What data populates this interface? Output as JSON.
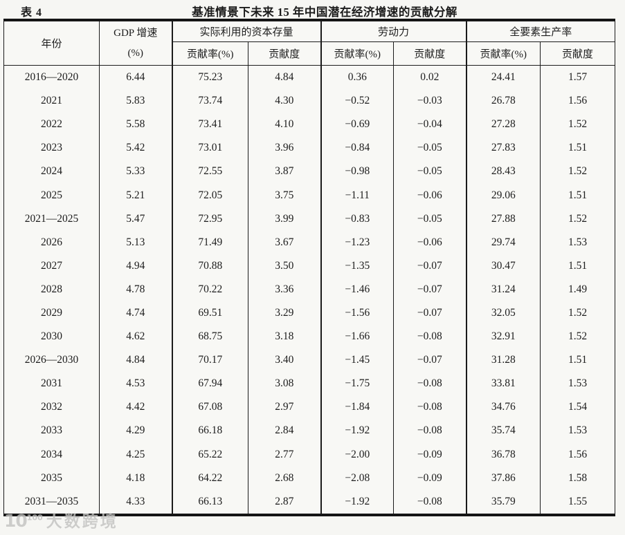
{
  "table": {
    "tag": "表 4",
    "title": "基准情景下未来 15 年中国潜在经济增速的贡献分解",
    "header": {
      "year": "年份",
      "gdp_line1": "GDP 增速",
      "gdp_line2": "(%)",
      "groups": [
        {
          "label": "实际利用的资本存量",
          "sub_rate": "贡献率(%)",
          "sub_degree": "贡献度"
        },
        {
          "label": "劳动力",
          "sub_rate": "贡献率(%)",
          "sub_degree": "贡献度"
        },
        {
          "label": "全要素生产率",
          "sub_rate": "贡献率(%)",
          "sub_degree": "贡献度"
        }
      ]
    },
    "rows": [
      [
        "2016—2020",
        "6.44",
        "75.23",
        "4.84",
        "0.36",
        "0.02",
        "24.41",
        "1.57"
      ],
      [
        "2021",
        "5.83",
        "73.74",
        "4.30",
        "−0.52",
        "−0.03",
        "26.78",
        "1.56"
      ],
      [
        "2022",
        "5.58",
        "73.41",
        "4.10",
        "−0.69",
        "−0.04",
        "27.28",
        "1.52"
      ],
      [
        "2023",
        "5.42",
        "73.01",
        "3.96",
        "−0.84",
        "−0.05",
        "27.83",
        "1.51"
      ],
      [
        "2024",
        "5.33",
        "72.55",
        "3.87",
        "−0.98",
        "−0.05",
        "28.43",
        "1.52"
      ],
      [
        "2025",
        "5.21",
        "72.05",
        "3.75",
        "−1.11",
        "−0.06",
        "29.06",
        "1.51"
      ],
      [
        "2021—2025",
        "5.47",
        "72.95",
        "3.99",
        "−0.83",
        "−0.05",
        "27.88",
        "1.52"
      ],
      [
        "2026",
        "5.13",
        "71.49",
        "3.67",
        "−1.23",
        "−0.06",
        "29.74",
        "1.53"
      ],
      [
        "2027",
        "4.94",
        "70.88",
        "3.50",
        "−1.35",
        "−0.07",
        "30.47",
        "1.51"
      ],
      [
        "2028",
        "4.78",
        "70.22",
        "3.36",
        "−1.46",
        "−0.07",
        "31.24",
        "1.49"
      ],
      [
        "2029",
        "4.74",
        "69.51",
        "3.29",
        "−1.56",
        "−0.07",
        "32.05",
        "1.52"
      ],
      [
        "2030",
        "4.62",
        "68.75",
        "3.18",
        "−1.66",
        "−0.08",
        "32.91",
        "1.52"
      ],
      [
        "2026—2030",
        "4.84",
        "70.17",
        "3.40",
        "−1.45",
        "−0.07",
        "31.28",
        "1.51"
      ],
      [
        "2031",
        "4.53",
        "67.94",
        "3.08",
        "−1.75",
        "−0.08",
        "33.81",
        "1.53"
      ],
      [
        "2032",
        "4.42",
        "67.08",
        "2.97",
        "−1.84",
        "−0.08",
        "34.76",
        "1.54"
      ],
      [
        "2033",
        "4.29",
        "66.18",
        "2.84",
        "−1.92",
        "−0.08",
        "35.74",
        "1.53"
      ],
      [
        "2034",
        "4.25",
        "65.22",
        "2.77",
        "−2.00",
        "−0.09",
        "36.78",
        "1.56"
      ],
      [
        "2035",
        "4.18",
        "64.22",
        "2.68",
        "−2.08",
        "−0.09",
        "37.86",
        "1.58"
      ],
      [
        "2031—2035",
        "4.33",
        "66.13",
        "2.87",
        "−1.92",
        "−0.08",
        "35.79",
        "1.55"
      ]
    ]
  },
  "watermark": {
    "logo_base": "10",
    "logo_sup": "100",
    "text": "大数跨境"
  },
  "colors": {
    "page_background": "#f6f6f3",
    "rule_black": "#151515",
    "text": "#1c1c1c",
    "watermark_gray": "#c2c2c0"
  }
}
